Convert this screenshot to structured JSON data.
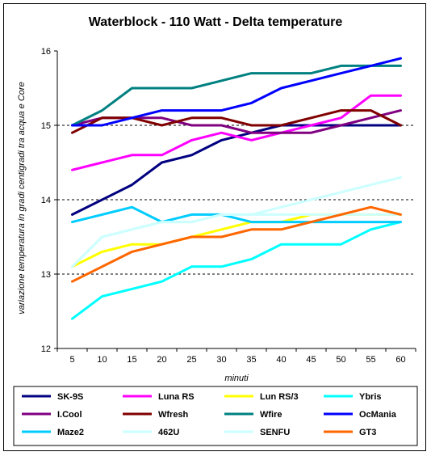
{
  "chart_data": {
    "type": "line",
    "title": "Waterblock - 110 Watt - Delta temperature",
    "xlabel": "minuti",
    "ylabel": "variazione temperatura in gradi centigradi tra acqua e Core",
    "x": [
      5,
      10,
      15,
      20,
      25,
      30,
      35,
      40,
      45,
      50,
      55,
      60
    ],
    "ylim": [
      12,
      16
    ],
    "yticks": [
      12,
      13,
      14,
      15,
      16
    ],
    "grid": "horizontal dashed at 13, 14, 15",
    "legend_position": "bottom",
    "series": [
      {
        "name": "SK-9S",
        "color": "#000080",
        "values": [
          13.8,
          14.0,
          14.2,
          14.5,
          14.6,
          14.8,
          14.9,
          15.0,
          15.0,
          15.0,
          15.0,
          15.0
        ]
      },
      {
        "name": "Luna RS",
        "color": "#FF00FF",
        "values": [
          14.4,
          14.5,
          14.6,
          14.6,
          14.8,
          14.9,
          14.8,
          14.9,
          15.0,
          15.1,
          15.4,
          15.4
        ]
      },
      {
        "name": "Lun RS/3",
        "color": "#FFFF00",
        "values": [
          13.1,
          13.3,
          13.4,
          13.4,
          13.5,
          13.6,
          13.7,
          13.7,
          13.8,
          13.8,
          13.8,
          13.8
        ]
      },
      {
        "name": "Ybris",
        "color": "#00FFFF",
        "values": [
          12.4,
          12.7,
          12.8,
          12.9,
          13.1,
          13.1,
          13.2,
          13.4,
          13.4,
          13.4,
          13.6,
          13.7
        ]
      },
      {
        "name": "I.Cool",
        "color": "#800080",
        "values": [
          15.0,
          15.1,
          15.1,
          15.1,
          15.0,
          15.0,
          14.9,
          14.9,
          14.9,
          15.0,
          15.1,
          15.2
        ]
      },
      {
        "name": "Wfresh",
        "color": "#800000",
        "values": [
          14.9,
          15.1,
          15.1,
          15.0,
          15.1,
          15.1,
          15.0,
          15.0,
          15.1,
          15.2,
          15.2,
          15.0
        ]
      },
      {
        "name": "Wfire",
        "color": "#008080",
        "values": [
          15.0,
          15.2,
          15.5,
          15.5,
          15.5,
          15.6,
          15.7,
          15.7,
          15.7,
          15.8,
          15.8,
          15.8
        ]
      },
      {
        "name": "OcMania",
        "color": "#0000FF",
        "values": [
          15.0,
          15.0,
          15.1,
          15.2,
          15.2,
          15.2,
          15.3,
          15.5,
          15.6,
          15.7,
          15.8,
          15.9
        ]
      },
      {
        "name": "Maze2",
        "color": "#00CCFF",
        "values": [
          13.7,
          13.8,
          13.9,
          13.7,
          13.8,
          13.8,
          13.7,
          13.7,
          13.7,
          13.7,
          13.7,
          13.7
        ]
      },
      {
        "name": "462U",
        "color": "#CCFFFF",
        "values": [
          13.1,
          13.5,
          13.6,
          13.7,
          13.7,
          13.8,
          13.8,
          13.8,
          13.8,
          13.8,
          13.8,
          13.8
        ]
      },
      {
        "name": "SENFU",
        "color": "#CCFFFF",
        "values": [
          13.1,
          13.5,
          13.6,
          13.7,
          13.7,
          13.8,
          13.8,
          13.9,
          14.0,
          14.1,
          14.2,
          14.3
        ]
      },
      {
        "name": "GT3",
        "color": "#FF6600",
        "values": [
          12.9,
          13.1,
          13.3,
          13.4,
          13.5,
          13.5,
          13.6,
          13.6,
          13.7,
          13.8,
          13.9,
          13.8
        ]
      }
    ]
  }
}
